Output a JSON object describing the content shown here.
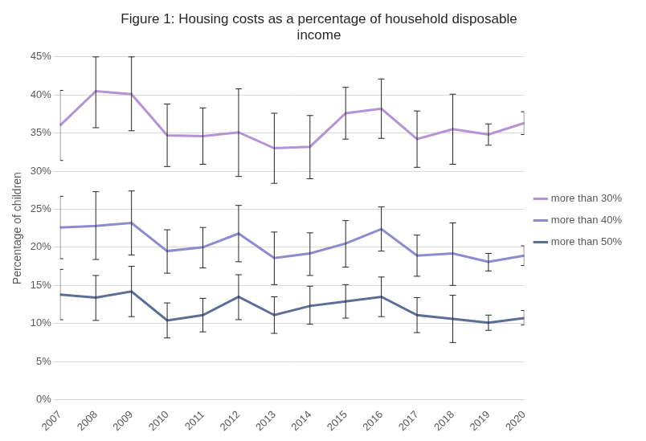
{
  "chart_data": {
    "type": "line",
    "title": "Figure 1: Housing costs as a percentage of household disposable income",
    "y_label": "Percentage of children",
    "categories": [
      "2007",
      "2008",
      "2009",
      "2010",
      "2011",
      "2012",
      "2013",
      "2014",
      "2015",
      "2016",
      "2017",
      "2018",
      "2019",
      "2020"
    ],
    "series": [
      {
        "name": "more than 30%",
        "color": "#b592d6",
        "values": [
          36.0,
          40.5,
          40.1,
          34.7,
          34.6,
          35.1,
          33.0,
          33.2,
          37.6,
          38.2,
          34.2,
          35.5,
          34.8,
          36.3
        ],
        "lower": [
          31.4,
          35.7,
          35.3,
          30.6,
          30.9,
          29.3,
          28.4,
          29.0,
          34.2,
          34.3,
          30.5,
          30.9,
          33.4,
          34.8
        ],
        "upper": [
          40.6,
          45.0,
          45.0,
          38.8,
          38.3,
          40.8,
          37.6,
          37.3,
          41.0,
          42.1,
          37.9,
          40.1,
          36.2,
          37.8
        ]
      },
      {
        "name": "more than 40%",
        "color": "#8e8ad0",
        "values": [
          22.6,
          22.8,
          23.2,
          19.5,
          20.0,
          21.8,
          18.6,
          19.2,
          20.5,
          22.4,
          18.9,
          19.2,
          18.1,
          18.9
        ],
        "lower": [
          18.5,
          18.4,
          19.0,
          16.6,
          17.3,
          18.1,
          15.1,
          16.3,
          17.4,
          19.5,
          16.2,
          15.0,
          16.9,
          17.6
        ],
        "upper": [
          26.7,
          27.3,
          27.4,
          22.3,
          22.6,
          25.5,
          22.0,
          21.9,
          23.5,
          25.3,
          21.6,
          23.2,
          19.2,
          20.2
        ]
      },
      {
        "name": "more than 50%",
        "color": "#5b6f96",
        "values": [
          13.8,
          13.4,
          14.2,
          10.4,
          11.1,
          13.5,
          11.1,
          12.3,
          12.9,
          13.5,
          11.1,
          10.6,
          10.1,
          10.7
        ],
        "lower": [
          10.5,
          10.4,
          10.9,
          8.1,
          8.9,
          10.5,
          8.7,
          9.9,
          10.7,
          10.9,
          8.8,
          7.5,
          9.1,
          9.8
        ],
        "upper": [
          17.1,
          16.3,
          17.5,
          12.7,
          13.3,
          16.4,
          13.5,
          14.9,
          15.1,
          16.1,
          13.4,
          13.7,
          11.1,
          11.7
        ]
      }
    ],
    "ylim": [
      0,
      45
    ],
    "yticks": [
      {
        "value": 0,
        "label": "0%"
      },
      {
        "value": 5,
        "label": "5%"
      },
      {
        "value": 10,
        "label": "10%"
      },
      {
        "value": 15,
        "label": "15%"
      },
      {
        "value": 20,
        "label": "20%"
      },
      {
        "value": 25,
        "label": "25%"
      },
      {
        "value": 30,
        "label": "30%"
      },
      {
        "value": 35,
        "label": "35%"
      },
      {
        "value": 40,
        "label": "40%"
      },
      {
        "value": 45,
        "label": "45%"
      }
    ],
    "grid": true,
    "legend": "right"
  }
}
